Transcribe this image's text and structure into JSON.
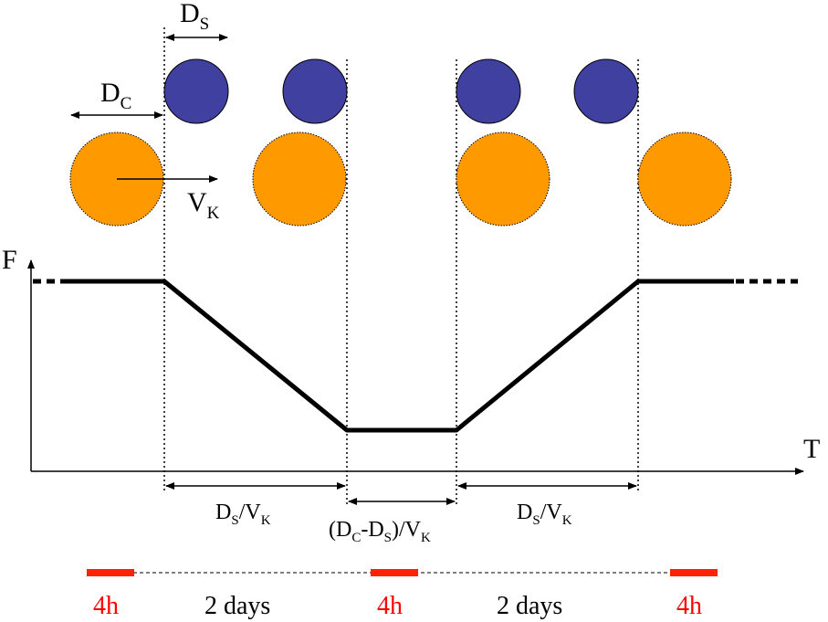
{
  "labels": {
    "ds": "D",
    "ds_sub": "S",
    "dc": "D",
    "dc_sub": "C",
    "vk": "V",
    "vk_sub": "K",
    "f_axis": "F",
    "t_axis": "T"
  },
  "intervals": {
    "first": {
      "num": "D",
      "num_sub": "S",
      "slash": "/V",
      "den_sub": "K"
    },
    "middle": {
      "open": "(D",
      "c_sub": "C",
      "minus": "-D",
      "s_sub": "S",
      "close": ")/V",
      "k_sub": "K"
    },
    "last": {
      "num": "D",
      "num_sub": "S",
      "slash": "/V",
      "den_sub": "K"
    }
  },
  "timeline": {
    "window1": "4h",
    "gap1": "2 days",
    "window2": "4h",
    "gap2": "2 days",
    "window3": "4h"
  },
  "colors": {
    "small_circle_fill": "#4040a0",
    "large_circle_fill": "#ff9900",
    "timeline_red": "#ff2200"
  }
}
